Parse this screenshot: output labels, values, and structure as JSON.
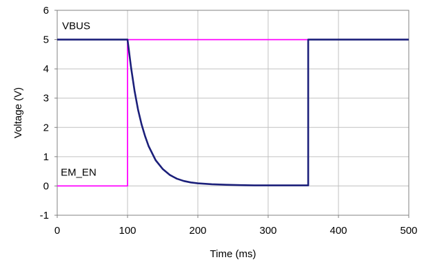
{
  "chart_data": {
    "type": "line",
    "xlabel": "Time (ms)",
    "ylabel": "Voltage (V)",
    "xlim": [
      0,
      500
    ],
    "ylim": [
      -1,
      6
    ],
    "x_ticks": [
      0,
      100,
      200,
      300,
      400,
      500
    ],
    "y_ticks": [
      -1,
      0,
      1,
      2,
      3,
      4,
      5,
      6
    ],
    "grid": true,
    "legend": "none",
    "annotations": [
      {
        "text": "VBUS",
        "x": 7,
        "y": 5.35
      },
      {
        "text": "EM_EN",
        "x": 5,
        "y": 0.35
      }
    ],
    "series": [
      {
        "name": "VBUS",
        "color": "#1b1f7a",
        "x": [
          0,
          100,
          100,
          105,
          110,
          115,
          120,
          125,
          130,
          140,
          150,
          160,
          170,
          180,
          190,
          200,
          220,
          240,
          260,
          280,
          300,
          320,
          340,
          357,
          357,
          360,
          400,
          450,
          500
        ],
        "values": [
          5.0,
          5.0,
          5.0,
          4.05,
          3.25,
          2.6,
          2.1,
          1.7,
          1.36,
          0.88,
          0.58,
          0.38,
          0.25,
          0.17,
          0.12,
          0.09,
          0.06,
          0.04,
          0.03,
          0.02,
          0.02,
          0.02,
          0.02,
          0.02,
          5.0,
          5.0,
          5.0,
          5.0,
          5.0
        ]
      },
      {
        "name": "EM_EN",
        "color": "#ff00ff",
        "x": [
          0,
          100,
          100,
          200,
          300,
          400,
          500
        ],
        "values": [
          0.0,
          0.0,
          5.0,
          5.0,
          5.0,
          5.0,
          5.0
        ]
      }
    ]
  }
}
